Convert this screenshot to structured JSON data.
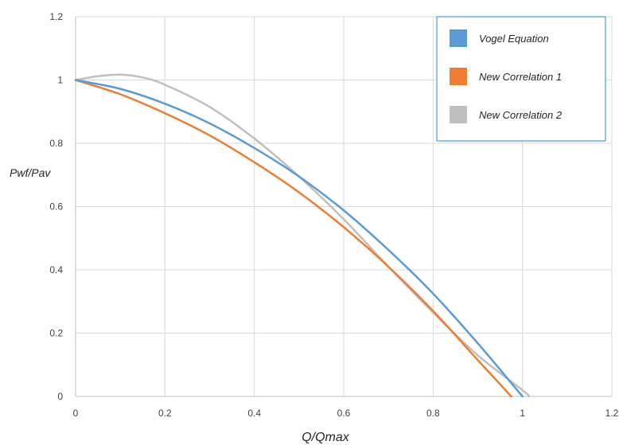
{
  "chart_data": {
    "type": "line",
    "title": "",
    "xlabel": "Q/Qmax",
    "ylabel": "Pwf/Pav",
    "xlim": [
      0,
      1.2
    ],
    "ylim": [
      0,
      1.2
    ],
    "xticks": [
      "0",
      "0.2",
      "0.4",
      "0.6",
      "0.8",
      "1",
      "1.2"
    ],
    "yticks": [
      "0",
      "0.2",
      "0.4",
      "0.6",
      "0.8",
      "1",
      "1.2"
    ],
    "grid": true,
    "legend_position": "top-right",
    "series": [
      {
        "name": "Vogel Equation",
        "color": "#5b9bd5",
        "x": [
          0,
          0.1,
          0.2,
          0.3,
          0.4,
          0.5,
          0.6,
          0.7,
          0.8,
          0.9,
          1.0
        ],
        "y": [
          1.0,
          0.972,
          0.925,
          0.863,
          0.785,
          0.695,
          0.588,
          0.463,
          0.325,
          0.168,
          0.0
        ]
      },
      {
        "name": "New Correlation 1",
        "color": "#ed7d31",
        "x": [
          0,
          0.1,
          0.2,
          0.3,
          0.4,
          0.5,
          0.6,
          0.7,
          0.8,
          0.9,
          0.975
        ],
        "y": [
          1.0,
          0.955,
          0.895,
          0.825,
          0.74,
          0.645,
          0.535,
          0.41,
          0.27,
          0.115,
          0.0
        ]
      },
      {
        "name": "New Correlation 2",
        "color": "#bfbfbf",
        "x": [
          0,
          0.05,
          0.1,
          0.15,
          0.2,
          0.3,
          0.4,
          0.5,
          0.6,
          0.7,
          0.8,
          0.9,
          1.0,
          1.015
        ],
        "y": [
          1.0,
          1.012,
          1.017,
          1.008,
          0.985,
          0.915,
          0.815,
          0.695,
          0.56,
          0.41,
          0.265,
          0.13,
          0.02,
          0.0
        ]
      }
    ]
  }
}
